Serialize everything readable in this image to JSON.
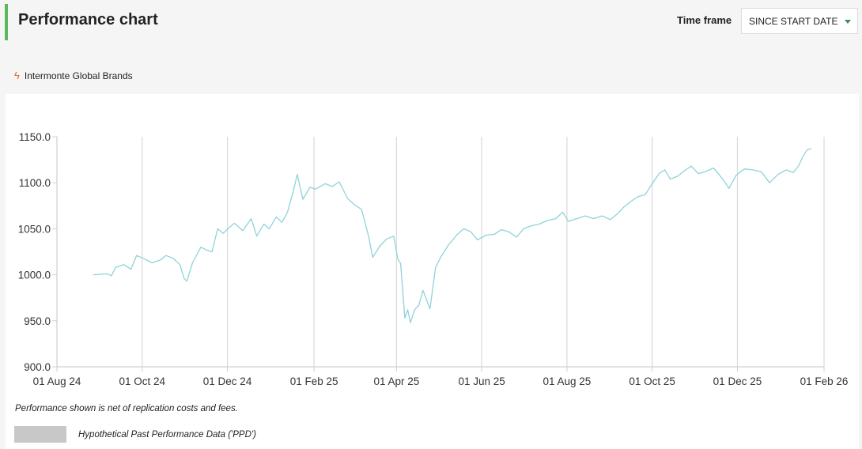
{
  "header": {
    "title": "Performance chart",
    "timeframe_label": "Time frame",
    "timeframe_value": "SINCE START DATE"
  },
  "legend": {
    "icon": "lightning-icon",
    "series_name": "Intermonte Global Brands"
  },
  "footer": {
    "note": "Performance shown is net of replication costs and fees.",
    "ppd_label": "Hypothetical Past Performance Data ('PPD')"
  },
  "colors": {
    "accent": "#5cb85c",
    "line": "#8fd3d9",
    "bolt": "#e8692b",
    "ppd_swatch": "#c8c8c8"
  },
  "chart_data": {
    "type": "line",
    "title": "",
    "xlabel": "",
    "ylabel": "",
    "x_range": [
      "2024-08-01",
      "2026-02-01"
    ],
    "ylim": [
      900,
      1150
    ],
    "y_ticks": [
      "900.0",
      "950.0",
      "1000.0",
      "1050.0",
      "1100.0",
      "1150.0"
    ],
    "x_ticks": [
      "01 Aug 24",
      "01 Oct 24",
      "01 Dec 24",
      "01 Feb 25",
      "01 Apr 25",
      "01 Jun 25",
      "01 Aug 25",
      "01 Oct 25",
      "01 Dec 25",
      "01 Feb 26"
    ],
    "grid": "vertical",
    "legend_position": "top-left",
    "series": [
      {
        "name": "Intermonte Global Brands",
        "points": [
          [
            "2024-08-27",
            1000
          ],
          [
            "2024-09-06",
            1001
          ],
          [
            "2024-09-09",
            999
          ],
          [
            "2024-09-12",
            1008
          ],
          [
            "2024-09-18",
            1011
          ],
          [
            "2024-09-23",
            1006
          ],
          [
            "2024-09-27",
            1021
          ],
          [
            "2024-10-03",
            1017
          ],
          [
            "2024-10-08",
            1013
          ],
          [
            "2024-10-14",
            1016
          ],
          [
            "2024-10-18",
            1021
          ],
          [
            "2024-10-23",
            1018
          ],
          [
            "2024-10-28",
            1011
          ],
          [
            "2024-10-31",
            996
          ],
          [
            "2024-11-02",
            993
          ],
          [
            "2024-11-06",
            1013
          ],
          [
            "2024-11-12",
            1030
          ],
          [
            "2024-11-16",
            1027
          ],
          [
            "2024-11-20",
            1025
          ],
          [
            "2024-11-24",
            1050
          ],
          [
            "2024-11-28",
            1045
          ],
          [
            "2024-12-02",
            1051
          ],
          [
            "2024-12-06",
            1056
          ],
          [
            "2024-12-12",
            1048
          ],
          [
            "2024-12-18",
            1061
          ],
          [
            "2024-12-22",
            1042
          ],
          [
            "2024-12-27",
            1055
          ],
          [
            "2024-12-31",
            1050
          ],
          [
            "2025-01-05",
            1063
          ],
          [
            "2025-01-09",
            1057
          ],
          [
            "2025-01-13",
            1068
          ],
          [
            "2025-01-17",
            1090
          ],
          [
            "2025-01-20",
            1109
          ],
          [
            "2025-01-24",
            1082
          ],
          [
            "2025-01-29",
            1095
          ],
          [
            "2025-02-02",
            1093
          ],
          [
            "2025-02-09",
            1099
          ],
          [
            "2025-02-14",
            1096
          ],
          [
            "2025-02-19",
            1101
          ],
          [
            "2025-02-25",
            1083
          ],
          [
            "2025-03-02",
            1076
          ],
          [
            "2025-03-07",
            1071
          ],
          [
            "2025-03-12",
            1042
          ],
          [
            "2025-03-15",
            1019
          ],
          [
            "2025-03-20",
            1031
          ],
          [
            "2025-03-25",
            1039
          ],
          [
            "2025-03-30",
            1042
          ],
          [
            "2025-04-02",
            1017
          ],
          [
            "2025-04-04",
            1012
          ],
          [
            "2025-04-07",
            953
          ],
          [
            "2025-04-09",
            962
          ],
          [
            "2025-04-11",
            948
          ],
          [
            "2025-04-14",
            962
          ],
          [
            "2025-04-17",
            967
          ],
          [
            "2025-04-20",
            983
          ],
          [
            "2025-04-25",
            963
          ],
          [
            "2025-04-29",
            1008
          ],
          [
            "2025-05-03",
            1020
          ],
          [
            "2025-05-08",
            1032
          ],
          [
            "2025-05-14",
            1043
          ],
          [
            "2025-05-19",
            1050
          ],
          [
            "2025-05-24",
            1047
          ],
          [
            "2025-05-29",
            1038
          ],
          [
            "2025-06-04",
            1043
          ],
          [
            "2025-06-10",
            1044
          ],
          [
            "2025-06-15",
            1049
          ],
          [
            "2025-06-20",
            1047
          ],
          [
            "2025-06-26",
            1041
          ],
          [
            "2025-07-01",
            1050
          ],
          [
            "2025-07-06",
            1053
          ],
          [
            "2025-07-12",
            1055
          ],
          [
            "2025-07-18",
            1059
          ],
          [
            "2025-07-24",
            1061
          ],
          [
            "2025-07-29",
            1068
          ],
          [
            "2025-08-02",
            1058
          ],
          [
            "2025-08-08",
            1061
          ],
          [
            "2025-08-14",
            1064
          ],
          [
            "2025-08-20",
            1061
          ],
          [
            "2025-08-26",
            1064
          ],
          [
            "2025-09-01",
            1060
          ],
          [
            "2025-09-06",
            1066
          ],
          [
            "2025-09-11",
            1074
          ],
          [
            "2025-09-16",
            1080
          ],
          [
            "2025-09-21",
            1085
          ],
          [
            "2025-09-26",
            1087
          ],
          [
            "2025-10-01",
            1099
          ],
          [
            "2025-10-06",
            1110
          ],
          [
            "2025-10-10",
            1114
          ],
          [
            "2025-10-14",
            1104
          ],
          [
            "2025-10-19",
            1107
          ],
          [
            "2025-10-24",
            1113
          ],
          [
            "2025-10-29",
            1118
          ],
          [
            "2025-11-03",
            1110
          ],
          [
            "2025-11-08",
            1112
          ],
          [
            "2025-11-14",
            1116
          ],
          [
            "2025-11-20",
            1105
          ],
          [
            "2025-11-25",
            1094
          ],
          [
            "2025-11-30",
            1108
          ],
          [
            "2025-12-06",
            1115
          ],
          [
            "2025-12-12",
            1114
          ],
          [
            "2025-12-18",
            1112
          ],
          [
            "2025-12-24",
            1100
          ],
          [
            "2025-12-30",
            1109
          ],
          [
            "2026-01-05",
            1114
          ],
          [
            "2026-01-10",
            1111
          ],
          [
            "2026-01-14",
            1119
          ],
          [
            "2026-01-17",
            1129
          ],
          [
            "2026-01-20",
            1136
          ],
          [
            "2026-01-23",
            1137
          ]
        ]
      }
    ]
  }
}
